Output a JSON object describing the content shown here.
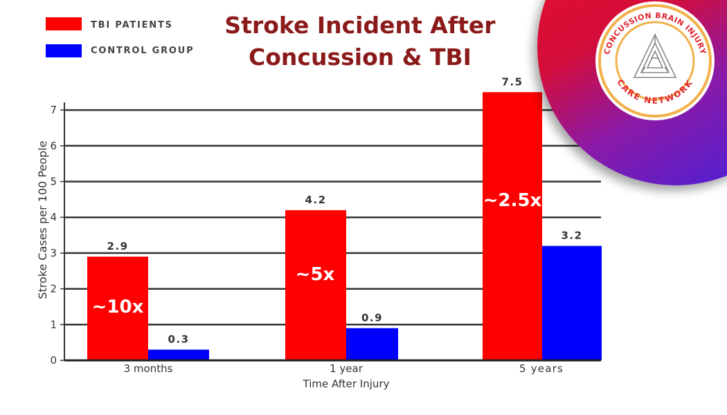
{
  "legend": [
    {
      "label": "TBI PATIENTS",
      "color": "#ff0000"
    },
    {
      "label": "CONTROL GROUP",
      "color": "#0000ff"
    }
  ],
  "title": {
    "line1": "Stroke Incident After",
    "line2": "Concussion & TBI"
  },
  "logo": {
    "text_top": "CONCUSSION BRAIN INJURY",
    "text_bottom": "CARE NETWORK",
    "icon": "triangle-maze-icon"
  },
  "chart_data": {
    "type": "bar",
    "title": "Stroke Incident After Concussion & TBI",
    "xlabel": "Time After Injury",
    "ylabel": "Stroke Cases per 100 People",
    "categories": [
      "3 months",
      "1 year",
      "5 years"
    ],
    "series": [
      {
        "name": "TBI PATIENTS",
        "color": "#ff0000",
        "values": [
          2.9,
          4.2,
          7.5
        ]
      },
      {
        "name": "CONTROL GROUP",
        "color": "#0000ff",
        "values": [
          0.3,
          0.9,
          3.2
        ]
      }
    ],
    "data_labels": {
      "TBI PATIENTS": [
        "2.9",
        "4.2",
        "7.5"
      ],
      "CONTROL GROUP": [
        "0.3",
        "0.9",
        "3.2"
      ]
    },
    "annotations": [
      "~10x",
      "~5x",
      "~2.5x"
    ],
    "yticks": [
      0,
      1,
      2,
      3,
      4,
      5,
      6,
      7
    ],
    "ylim": [
      0,
      7.5
    ],
    "grid": true,
    "legend_position": "top-left"
  }
}
